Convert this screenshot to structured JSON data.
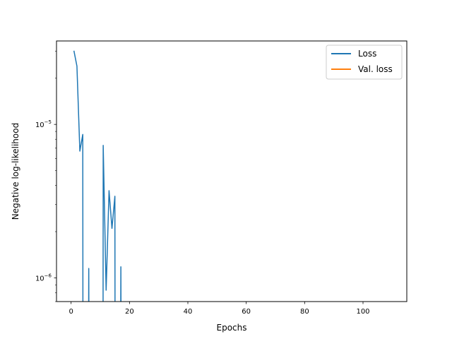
{
  "chart_data": {
    "type": "line",
    "title": "",
    "xlabel": "Epochs",
    "ylabel": "Negative log-likelihood",
    "yscale": "log",
    "xlim": [
      -5,
      115
    ],
    "ylim": [
      7e-07,
      3.5e-05
    ],
    "grid": false,
    "legend_position": "top-right",
    "x_ticks": [
      {
        "value": 0,
        "label": "0"
      },
      {
        "value": 20,
        "label": "20"
      },
      {
        "value": 40,
        "label": "40"
      },
      {
        "value": 60,
        "label": "60"
      },
      {
        "value": 80,
        "label": "80"
      },
      {
        "value": 100,
        "label": "100"
      }
    ],
    "y_ticks": [
      {
        "value": 1e-06,
        "base": "10",
        "exp": "−6"
      },
      {
        "value": 1e-05,
        "base": "10",
        "exp": "−5"
      }
    ],
    "series": [
      {
        "name": "Loss",
        "color": "#1f77b4",
        "segments": [
          [
            [
              1,
              3e-05
            ],
            [
              2,
              2.4e-05
            ],
            [
              3,
              6.7e-06
            ],
            [
              4,
              8.6e-06
            ],
            [
              4.05,
              5e-07
            ]
          ],
          [
            [
              6,
              5e-07
            ],
            [
              6.05,
              1.15e-06
            ],
            [
              6.1,
              5e-07
            ]
          ],
          [
            [
              10.95,
              5e-07
            ],
            [
              11,
              7.3e-06
            ],
            [
              12,
              8.3e-07
            ],
            [
              13,
              3.7e-06
            ],
            [
              14,
              2.1e-06
            ],
            [
              15,
              3.4e-06
            ],
            [
              15.05,
              5e-07
            ]
          ],
          [
            [
              17,
              5e-07
            ],
            [
              17.05,
              1.18e-06
            ],
            [
              17.1,
              5e-07
            ]
          ]
        ]
      },
      {
        "name": "Val. loss",
        "color": "#ff7f0e",
        "segments": []
      }
    ]
  }
}
